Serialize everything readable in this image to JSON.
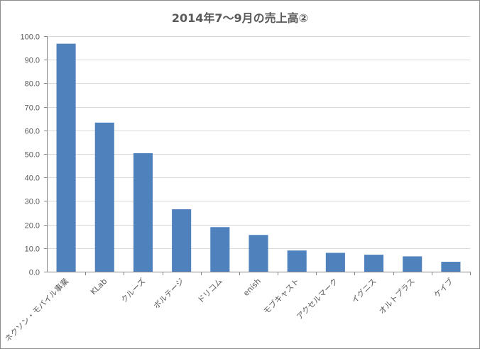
{
  "chart_data": {
    "type": "bar",
    "title": "2014年7〜9月の売上高②",
    "xlabel": "",
    "ylabel": "",
    "ylim": [
      0,
      100
    ],
    "yticks": [
      0,
      10,
      20,
      30,
      40,
      50,
      60,
      70,
      80,
      90,
      100
    ],
    "ytick_labels": [
      "0.0",
      "10.0",
      "20.0",
      "30.0",
      "40.0",
      "50.0",
      "60.0",
      "70.0",
      "80.0",
      "90.0",
      "100.0"
    ],
    "grid": true,
    "bar_color": "#4f81bd",
    "categories": [
      "ネクソン・モバイル事業",
      "KLab",
      "クルーズ",
      "ボルテージ",
      "ドリコム",
      "enish",
      "モブキャスト",
      "アクセルマーク",
      "イグニス",
      "オルトプラス",
      "ケイブ"
    ],
    "values": [
      96.8,
      63.3,
      50.3,
      26.5,
      18.9,
      15.6,
      9.0,
      8.0,
      7.2,
      6.5,
      4.2
    ]
  }
}
